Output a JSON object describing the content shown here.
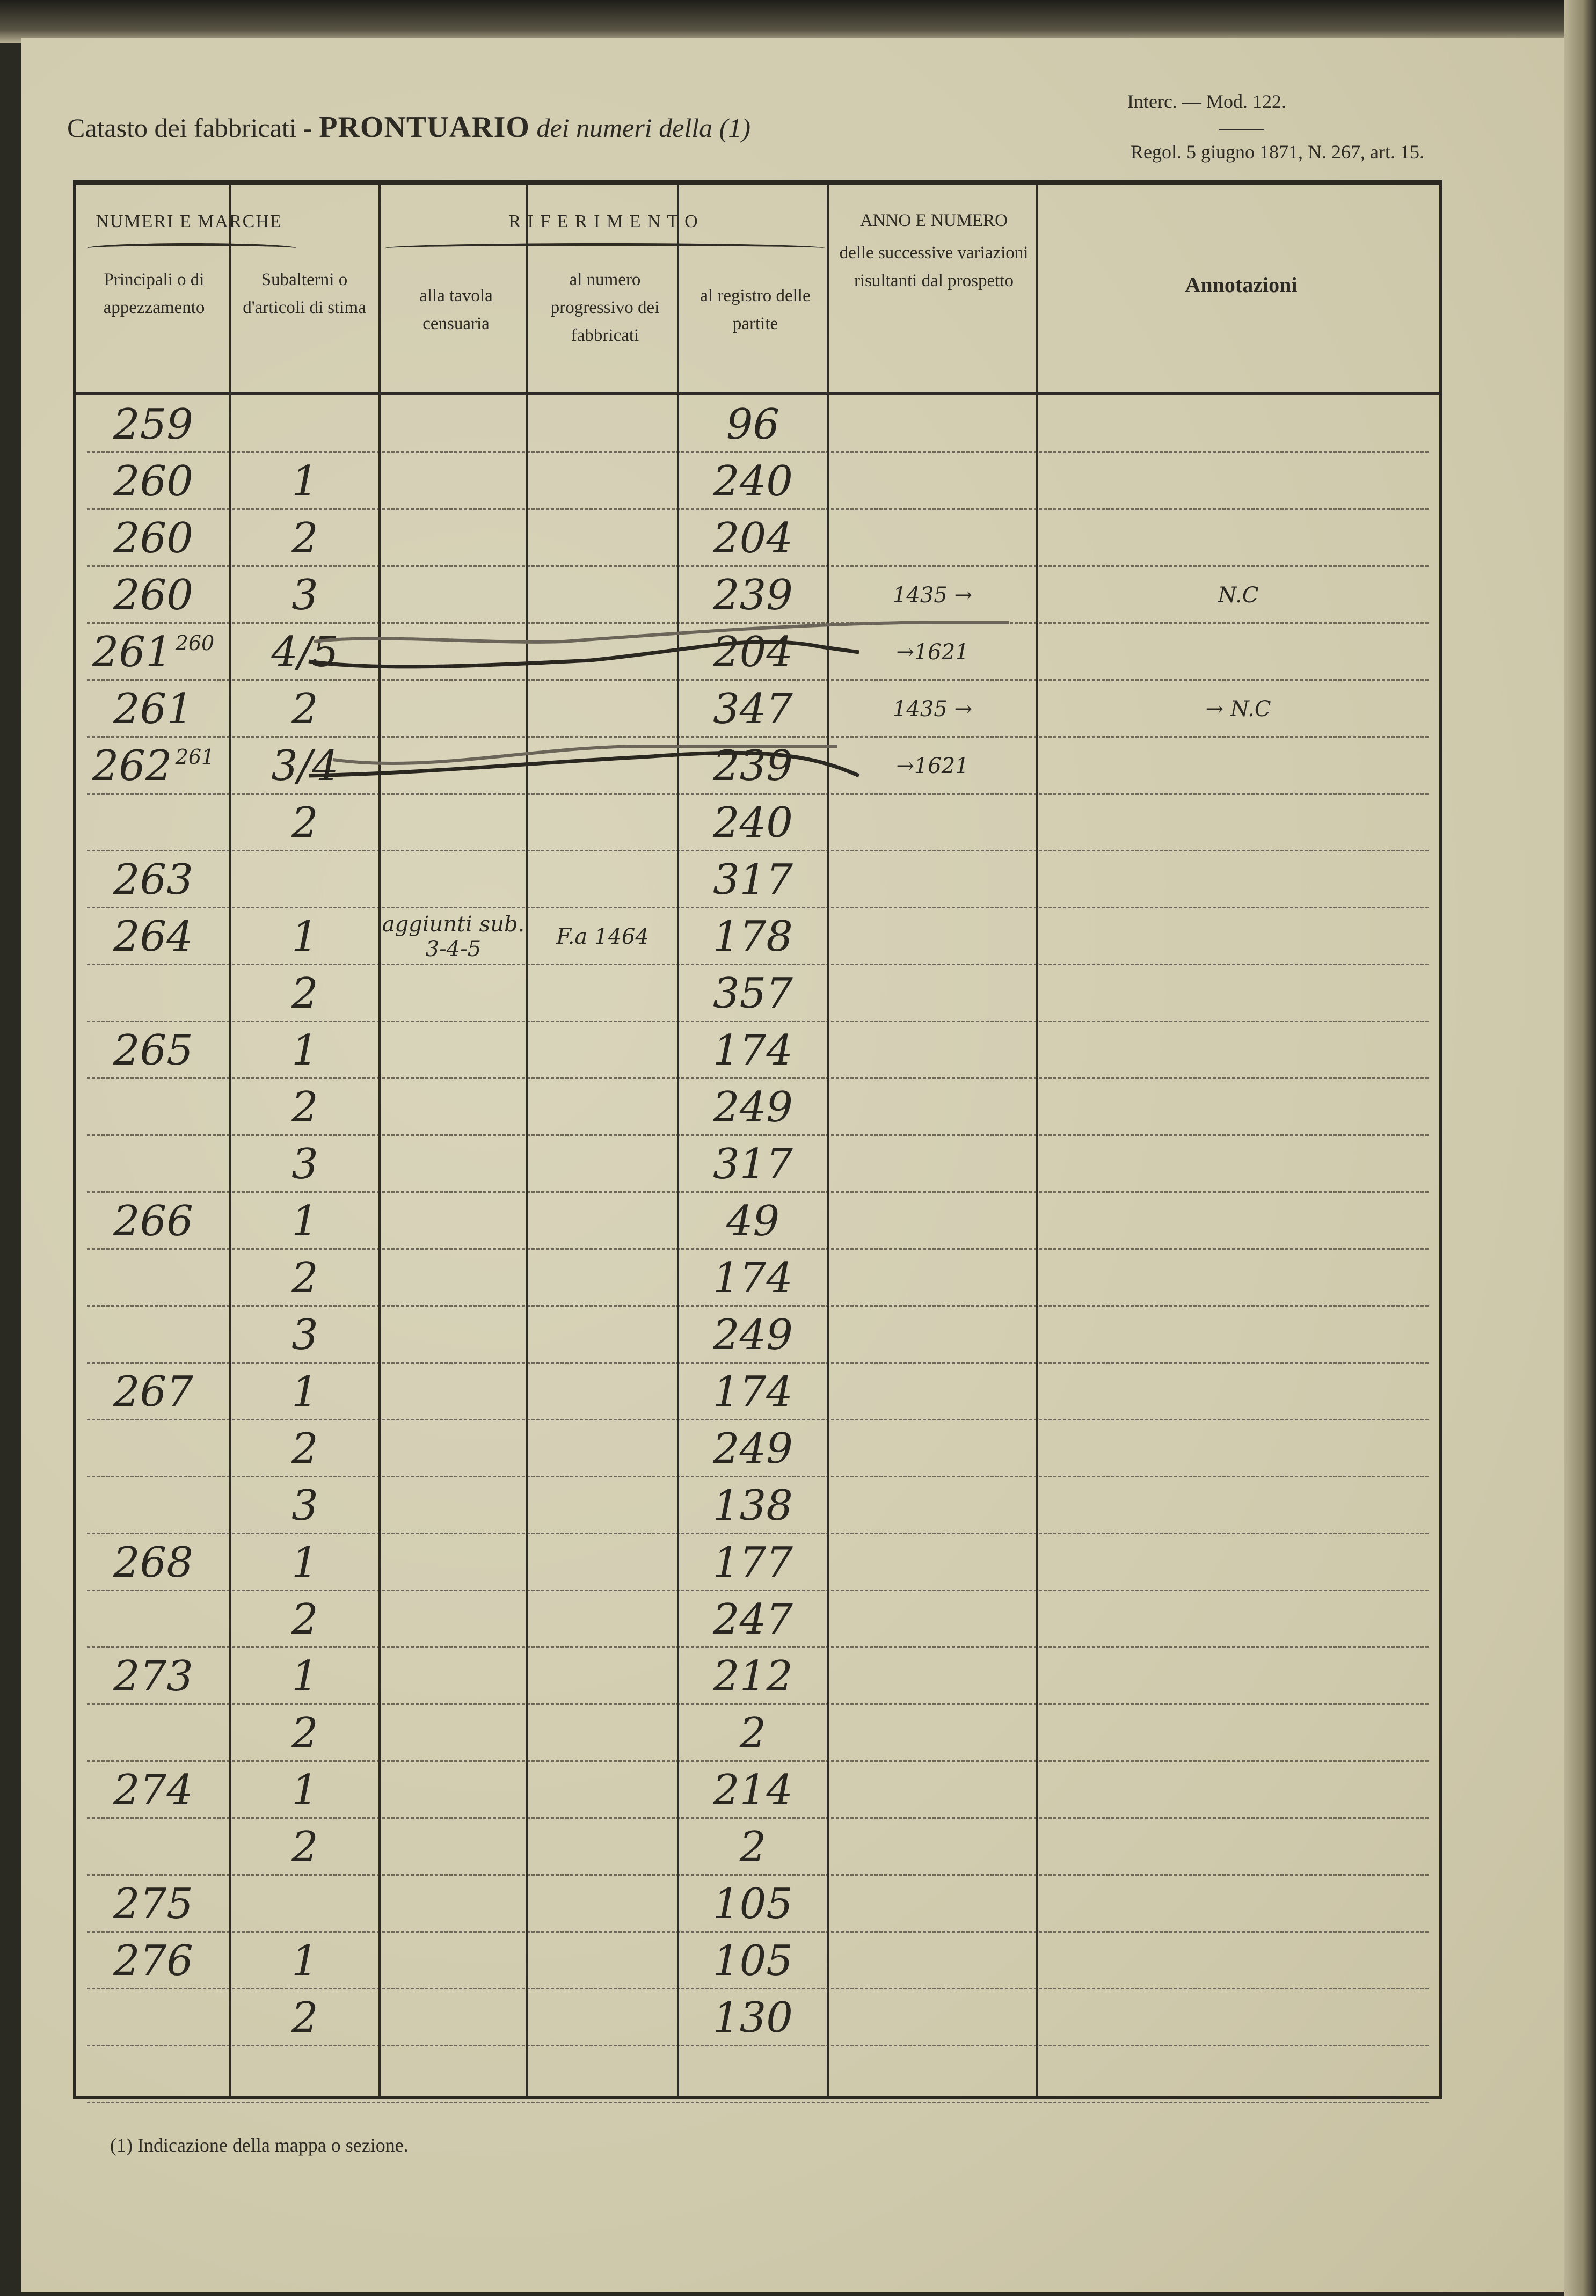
{
  "header": {
    "title_prefix": "Catasto dei fabbricati -",
    "title_main": "PRONTUARIO",
    "title_suffix": "dei numeri della (1)",
    "model": "Interc. — Mod. 122.",
    "regulation": "Regol. 5 giugno 1871, N. 267, art. 15."
  },
  "columns": {
    "group_numeri": "NUMERI E MARCHE",
    "group_riferimento": "R I F E R I M E N T O",
    "principali": "Principali o di appezzamento",
    "subalterni": "Subalterni o d'articoli di stima",
    "tavola": "alla tavola censuaria",
    "progressivo": "al numero progressivo dei fabbricati",
    "registro": "al registro delle partite",
    "variazioni_title": "ANNO E NUMERO",
    "variazioni": "delle successive variazioni risultanti dal prospetto",
    "annotazioni": "Annotazioni"
  },
  "rows": [
    {
      "principal": "259",
      "sub": "",
      "tavola": "",
      "progressivo": "",
      "registro": "96",
      "variazioni": "",
      "annotazioni": ""
    },
    {
      "principal": "260",
      "sub": "1",
      "tavola": "",
      "progressivo": "",
      "registro": "240",
      "variazioni": "",
      "annotazioni": ""
    },
    {
      "principal": "260",
      "sub": "2",
      "tavola": "",
      "progressivo": "",
      "registro": "204",
      "variazioni": "",
      "annotazioni": ""
    },
    {
      "principal": "260",
      "sub": "3",
      "tavola": "",
      "progressivo": "",
      "registro": "239",
      "variazioni": "1435 →",
      "annotazioni": "N.C"
    },
    {
      "principal": "261",
      "principal_sup": "260",
      "sub": "4/5",
      "tavola": "",
      "progressivo": "",
      "registro": "204",
      "variazioni": "→1621",
      "annotazioni": ""
    },
    {
      "principal": "261",
      "sub": "2",
      "tavola": "",
      "progressivo": "",
      "registro": "347",
      "variazioni": "1435 →",
      "annotazioni": "→ N.C"
    },
    {
      "principal": "262",
      "principal_sup": "261",
      "sub": "3/4",
      "tavola": "",
      "progressivo": "",
      "registro": "239",
      "variazioni": "→1621",
      "annotazioni": ""
    },
    {
      "principal": "",
      "sub": "2",
      "tavola": "",
      "progressivo": "",
      "registro": "240",
      "variazioni": "",
      "annotazioni": ""
    },
    {
      "principal": "263",
      "sub": "",
      "tavola": "",
      "progressivo": "",
      "registro": "317",
      "variazioni": "",
      "annotazioni": ""
    },
    {
      "principal": "264",
      "sub": "1",
      "tavola": "aggiunti sub. 3-4-5",
      "progressivo": "F.a 1464",
      "registro": "178",
      "variazioni": "",
      "annotazioni": ""
    },
    {
      "principal": "",
      "sub": "2",
      "tavola": "",
      "progressivo": "",
      "registro": "357",
      "variazioni": "",
      "annotazioni": ""
    },
    {
      "principal": "265",
      "sub": "1",
      "tavola": "",
      "progressivo": "",
      "registro": "174",
      "variazioni": "",
      "annotazioni": ""
    },
    {
      "principal": "",
      "sub": "2",
      "tavola": "",
      "progressivo": "",
      "registro": "249",
      "variazioni": "",
      "annotazioni": ""
    },
    {
      "principal": "",
      "sub": "3",
      "tavola": "",
      "progressivo": "",
      "registro": "317",
      "variazioni": "",
      "annotazioni": ""
    },
    {
      "principal": "266",
      "sub": "1",
      "tavola": "",
      "progressivo": "",
      "registro": "49",
      "variazioni": "",
      "annotazioni": ""
    },
    {
      "principal": "",
      "sub": "2",
      "tavola": "",
      "progressivo": "",
      "registro": "174",
      "variazioni": "",
      "annotazioni": ""
    },
    {
      "principal": "",
      "sub": "3",
      "tavola": "",
      "progressivo": "",
      "registro": "249",
      "variazioni": "",
      "annotazioni": ""
    },
    {
      "principal": "267",
      "sub": "1",
      "tavola": "",
      "progressivo": "",
      "registro": "174",
      "variazioni": "",
      "annotazioni": ""
    },
    {
      "principal": "",
      "sub": "2",
      "tavola": "",
      "progressivo": "",
      "registro": "249",
      "variazioni": "",
      "annotazioni": ""
    },
    {
      "principal": "",
      "sub": "3",
      "tavola": "",
      "progressivo": "",
      "registro": "138",
      "variazioni": "",
      "annotazioni": ""
    },
    {
      "principal": "268",
      "sub": "1",
      "tavola": "",
      "progressivo": "",
      "registro": "177",
      "variazioni": "",
      "annotazioni": ""
    },
    {
      "principal": "",
      "sub": "2",
      "tavola": "",
      "progressivo": "",
      "registro": "247",
      "variazioni": "",
      "annotazioni": ""
    },
    {
      "principal": "273",
      "sub": "1",
      "tavola": "",
      "progressivo": "",
      "registro": "212",
      "variazioni": "",
      "annotazioni": ""
    },
    {
      "principal": "",
      "sub": "2",
      "tavola": "",
      "progressivo": "",
      "registro": "2",
      "variazioni": "",
      "annotazioni": ""
    },
    {
      "principal": "274",
      "sub": "1",
      "tavola": "",
      "progressivo": "",
      "registro": "214",
      "variazioni": "",
      "annotazioni": ""
    },
    {
      "principal": "",
      "sub": "2",
      "tavola": "",
      "progressivo": "",
      "registro": "2",
      "variazioni": "",
      "annotazioni": ""
    },
    {
      "principal": "275",
      "sub": "",
      "tavola": "",
      "progressivo": "",
      "registro": "105",
      "variazioni": "",
      "annotazioni": ""
    },
    {
      "principal": "276",
      "sub": "1",
      "tavola": "",
      "progressivo": "",
      "registro": "105",
      "variazioni": "",
      "annotazioni": ""
    },
    {
      "principal": "",
      "sub": "2",
      "tavola": "",
      "progressivo": "",
      "registro": "130",
      "variazioni": "",
      "annotazioni": ""
    },
    {
      "principal": "",
      "sub": "",
      "tavola": "",
      "progressivo": "",
      "registro": "",
      "variazioni": "",
      "annotazioni": ""
    }
  ],
  "footnote": "(1) Indicazione della mappa o sezione.",
  "colors": {
    "paper": "#d3ceb2",
    "ink": "#2a2720",
    "print": "#2c2a22"
  }
}
